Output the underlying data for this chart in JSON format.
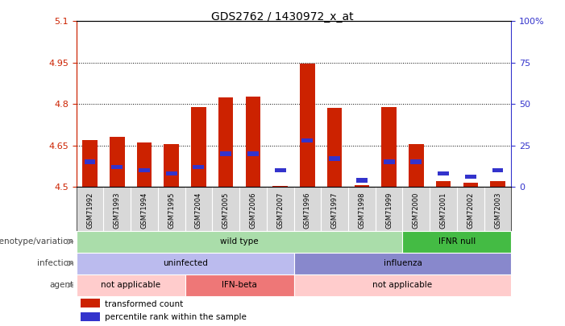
{
  "title": "GDS2762 / 1430972_x_at",
  "samples": [
    "GSM71992",
    "GSM71993",
    "GSM71994",
    "GSM71995",
    "GSM72004",
    "GSM72005",
    "GSM72006",
    "GSM72007",
    "GSM71996",
    "GSM71997",
    "GSM71998",
    "GSM71999",
    "GSM72000",
    "GSM72001",
    "GSM72002",
    "GSM72003"
  ],
  "red_values": [
    4.67,
    4.68,
    4.66,
    4.655,
    4.79,
    4.825,
    4.827,
    4.502,
    4.945,
    4.785,
    4.505,
    4.79,
    4.655,
    4.52,
    4.515,
    4.52
  ],
  "blue_pct": [
    15,
    12,
    10,
    8,
    12,
    20,
    20,
    10,
    28,
    17,
    4,
    15,
    15,
    8,
    6,
    10
  ],
  "y_min": 4.5,
  "y_max": 5.1,
  "y_ticks_left": [
    4.5,
    4.65,
    4.8,
    4.95,
    5.1
  ],
  "y_ticks_right": [
    0,
    25,
    50,
    75,
    100
  ],
  "grid_lines": [
    4.65,
    4.8,
    4.95
  ],
  "bar_width": 0.55,
  "red_color": "#cc2200",
  "blue_color": "#3333cc",
  "genotype_row": {
    "label": "genotype/variation",
    "segments": [
      {
        "text": "wild type",
        "start": 0,
        "end": 11,
        "color": "#aaddaa"
      },
      {
        "text": "IFNR null",
        "start": 12,
        "end": 15,
        "color": "#44bb44"
      }
    ]
  },
  "infection_row": {
    "label": "infection",
    "segments": [
      {
        "text": "uninfected",
        "start": 0,
        "end": 7,
        "color": "#bbbbee"
      },
      {
        "text": "influenza",
        "start": 8,
        "end": 15,
        "color": "#8888cc"
      }
    ]
  },
  "agent_row": {
    "label": "agent",
    "segments": [
      {
        "text": "not applicable",
        "start": 0,
        "end": 3,
        "color": "#ffcccc"
      },
      {
        "text": "IFN-beta",
        "start": 4,
        "end": 7,
        "color": "#ee7777"
      },
      {
        "text": "not applicable",
        "start": 8,
        "end": 15,
        "color": "#ffcccc"
      }
    ]
  },
  "legend": [
    {
      "label": "transformed count",
      "color": "#cc2200"
    },
    {
      "label": "percentile rank within the sample",
      "color": "#3333cc"
    }
  ]
}
